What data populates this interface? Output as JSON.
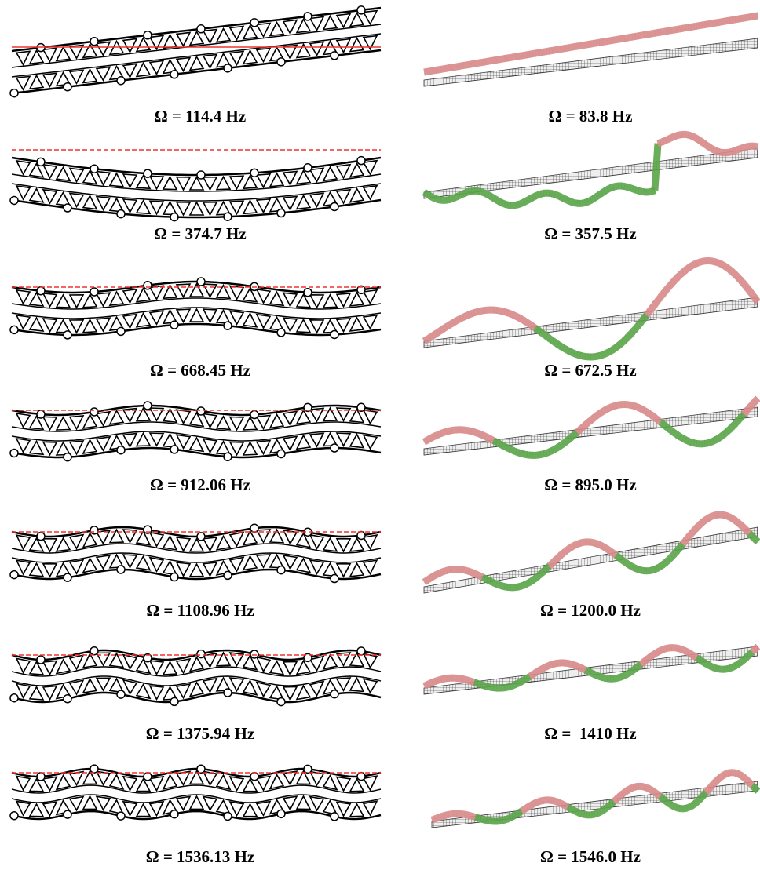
{
  "rows": [
    {
      "left": "Ω = 114.4 Hz",
      "right": "Ω = 83.8 Hz"
    },
    {
      "left": "Ω = 374.7 Hz",
      "right": "Ω = 357.5 Hz"
    },
    {
      "left": "Ω = 668.45 Hz",
      "right": "Ω = 672.5 Hz"
    },
    {
      "left": "Ω = 912.06 Hz",
      "right": "Ω = 895.0 Hz"
    },
    {
      "left": "Ω = 1108.96 Hz",
      "right": "Ω = 1200.0 Hz"
    },
    {
      "left": "Ω = 1375.94 Hz",
      "right": "Ω =  1410 Hz"
    },
    {
      "left": "Ω = 1536.13 Hz",
      "right": "Ω = 1546.0 Hz"
    }
  ]
}
